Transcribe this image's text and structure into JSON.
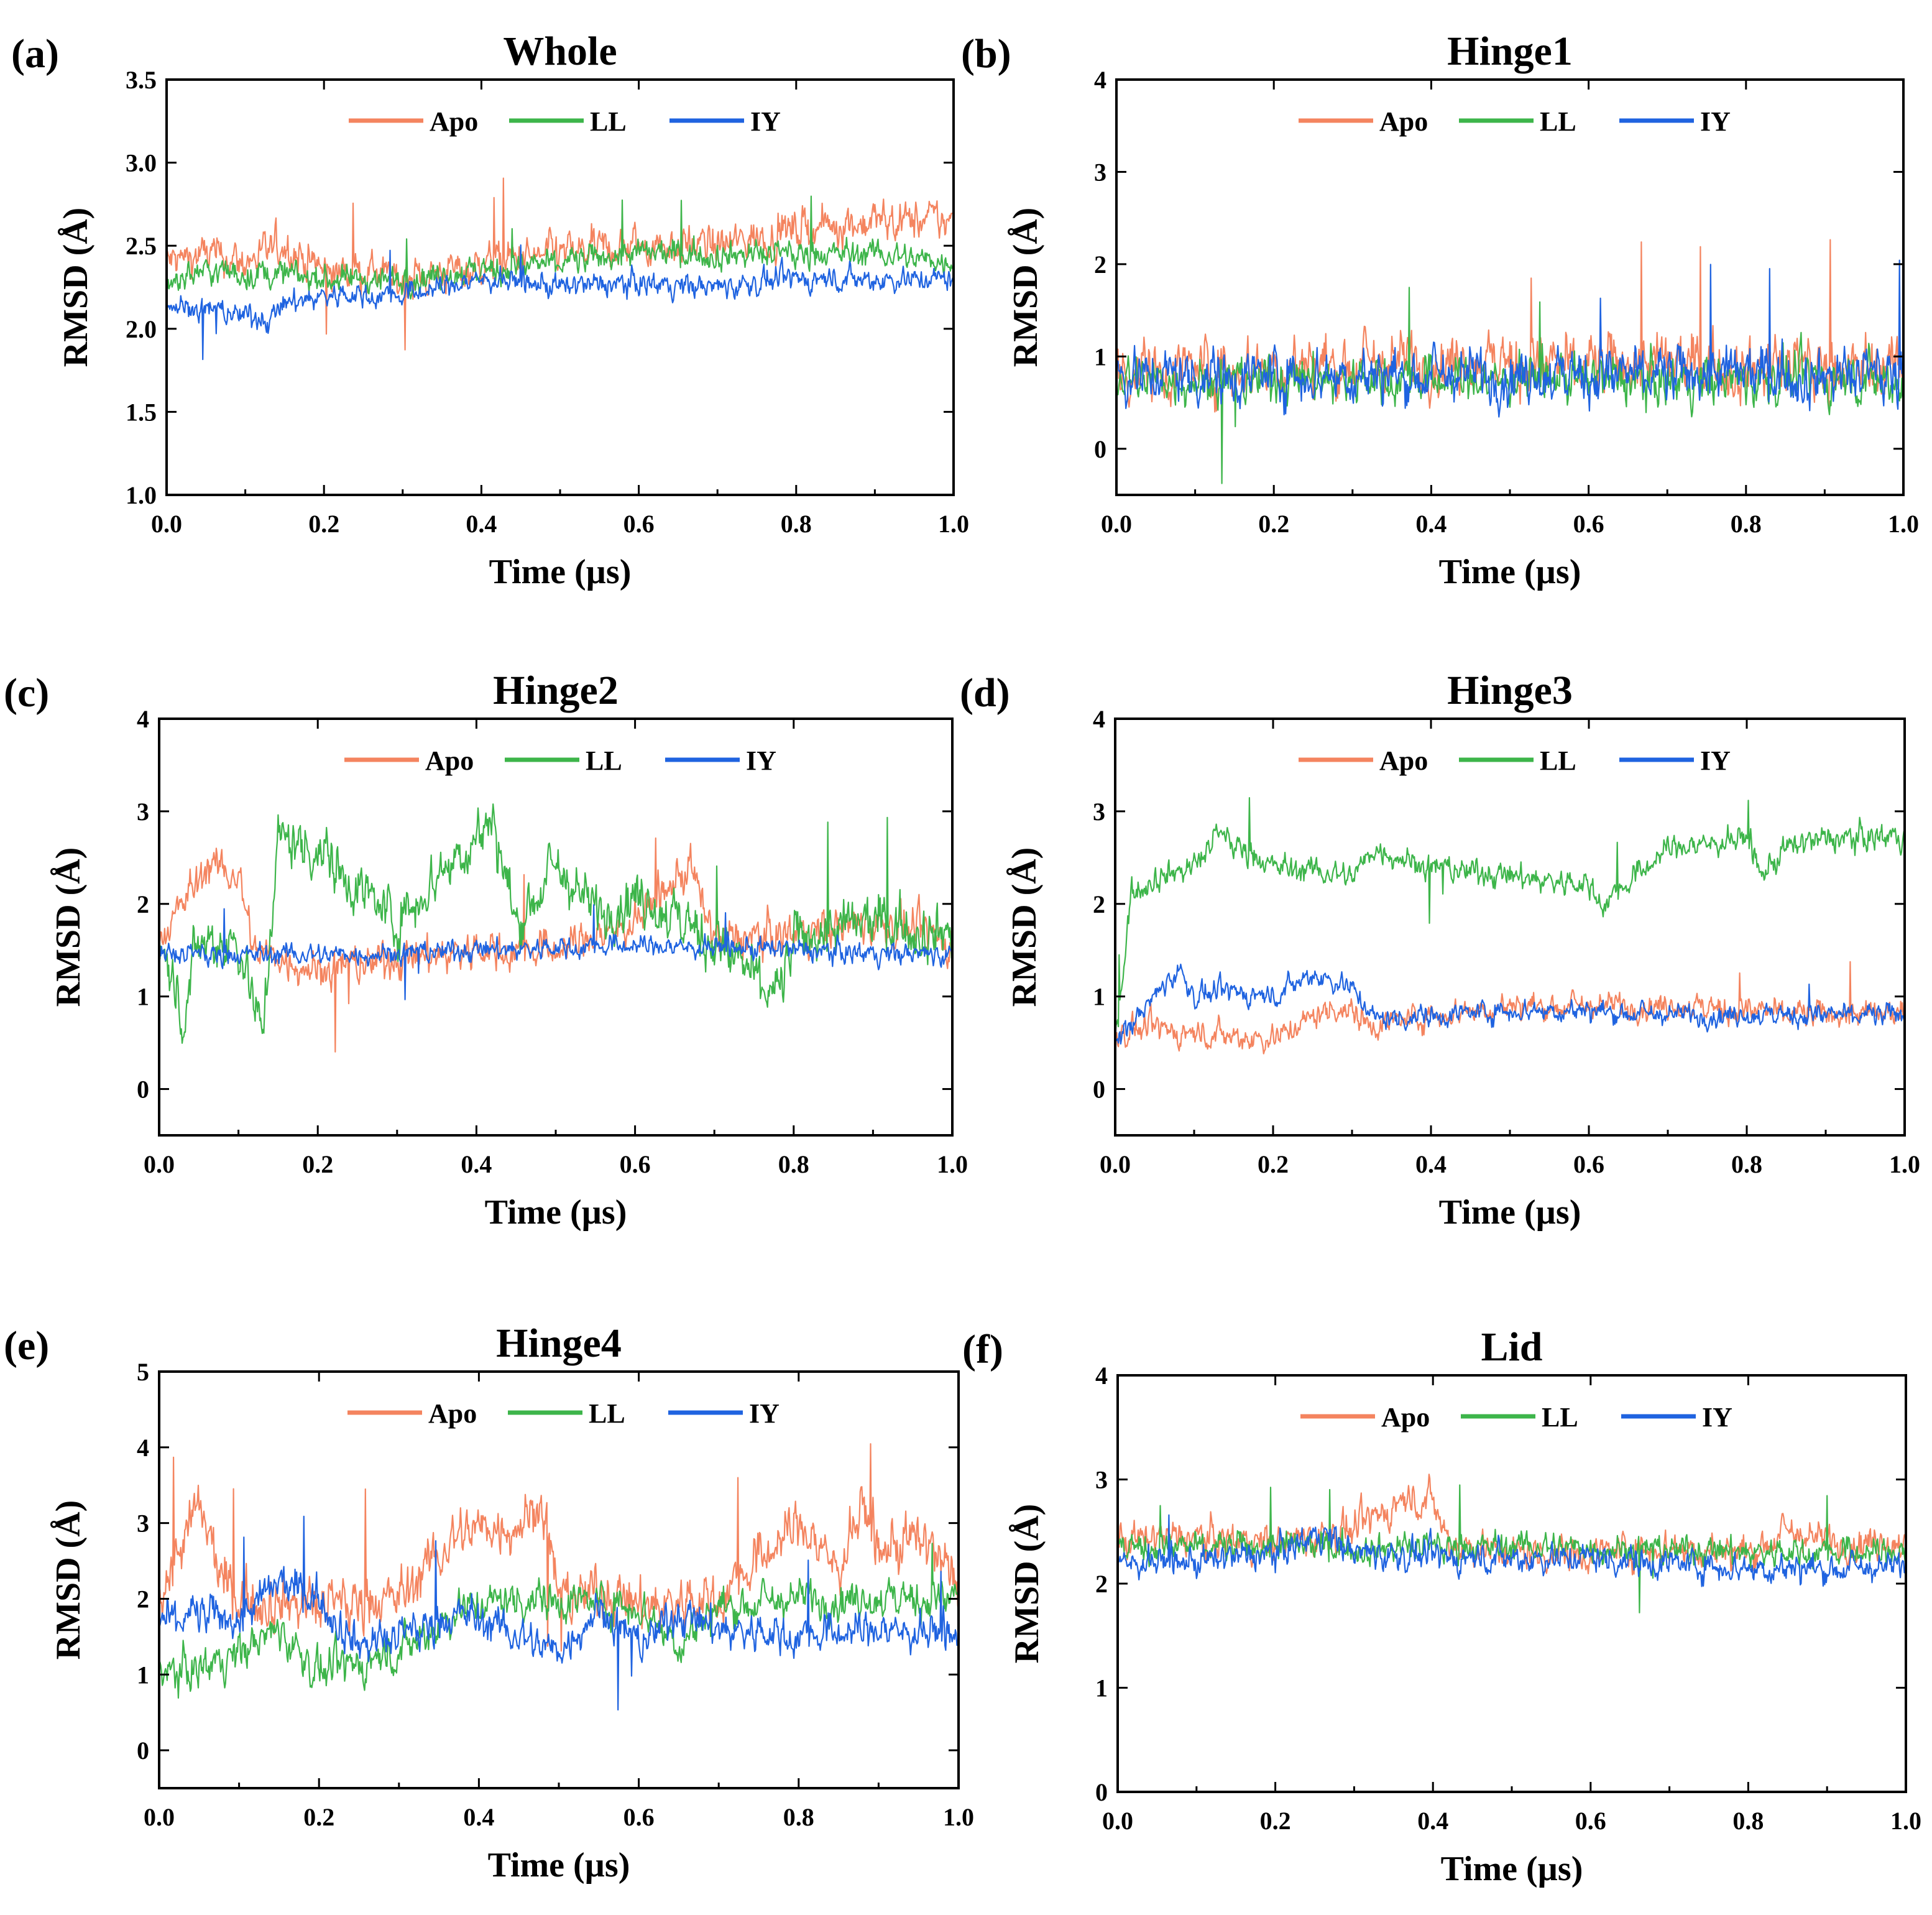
{
  "figure": {
    "colors": {
      "Apo": "#F4845F",
      "LL": "#3DB54A",
      "IY": "#1F63E0"
    },
    "legend_location": "top-center"
  },
  "chart_data": [
    {
      "type": "line",
      "panel_label": "(a)",
      "title": "Whole",
      "xlabel": "Time (µs)",
      "ylabel": "RMSD (Å)",
      "xlim": [
        0,
        1.0
      ],
      "ylim": [
        1.0,
        3.5
      ],
      "xticks": [
        "0.0",
        "0.2",
        "0.4",
        "0.6",
        "0.8",
        "1.0"
      ],
      "yticks": [
        "1.0",
        "1.5",
        "2.0",
        "2.5",
        "3.0",
        "3.5"
      ],
      "series": [
        {
          "name": "Apo",
          "x": [
            0,
            0.05,
            0.1,
            0.15,
            0.2,
            0.3,
            0.4,
            0.5,
            0.6,
            0.7,
            0.8,
            0.9,
            1.0
          ],
          "y": [
            2.4,
            2.45,
            2.4,
            2.5,
            2.35,
            2.3,
            2.38,
            2.45,
            2.5,
            2.5,
            2.6,
            2.65,
            2.65
          ],
          "noise": 0.1
        },
        {
          "name": "LL",
          "x": [
            0,
            0.05,
            0.1,
            0.15,
            0.2,
            0.3,
            0.4,
            0.5,
            0.6,
            0.7,
            0.8,
            0.9,
            1.0
          ],
          "y": [
            2.3,
            2.35,
            2.33,
            2.33,
            2.3,
            2.3,
            2.35,
            2.4,
            2.45,
            2.45,
            2.45,
            2.45,
            2.4
          ],
          "noise": 0.07
        },
        {
          "name": "IY",
          "x": [
            0,
            0.05,
            0.1,
            0.13,
            0.15,
            0.2,
            0.3,
            0.4,
            0.5,
            0.6,
            0.7,
            0.8,
            0.9,
            1.0
          ],
          "y": [
            2.15,
            2.12,
            2.08,
            2.05,
            2.15,
            2.2,
            2.2,
            2.3,
            2.25,
            2.28,
            2.25,
            2.3,
            2.3,
            2.3
          ],
          "noise": 0.06
        }
      ]
    },
    {
      "type": "line",
      "panel_label": "(b)",
      "title": "Hinge1",
      "xlabel": "Time (µs)",
      "ylabel": "RMSD (Å)",
      "xlim": [
        0,
        1.0
      ],
      "ylim": [
        -0.5,
        4
      ],
      "xticks": [
        "0.0",
        "0.2",
        "0.4",
        "0.6",
        "0.8",
        "1.0"
      ],
      "yticks": [
        "0",
        "1",
        "2",
        "3",
        "4"
      ],
      "series": [
        {
          "name": "Apo",
          "x": [
            0,
            0.2,
            0.4,
            0.6,
            0.8,
            1.0
          ],
          "y": [
            0.85,
            0.9,
            0.95,
            0.9,
            0.9,
            0.85
          ],
          "noise": 0.28
        },
        {
          "name": "LL",
          "x": [
            0,
            0.2,
            0.4,
            0.6,
            0.8,
            1.0
          ],
          "y": [
            0.75,
            0.75,
            0.75,
            0.75,
            0.75,
            0.75
          ],
          "noise": 0.22
        },
        {
          "name": "IY",
          "x": [
            0,
            0.2,
            0.4,
            0.6,
            0.8,
            1.0
          ],
          "y": [
            0.8,
            0.8,
            0.8,
            0.8,
            0.8,
            0.8
          ],
          "noise": 0.25
        }
      ]
    },
    {
      "type": "line",
      "panel_label": "(c)",
      "title": "Hinge2",
      "xlabel": "Time (µs)",
      "ylabel": "RMSD (Å)",
      "xlim": [
        0,
        1.0
      ],
      "ylim": [
        -0.5,
        4
      ],
      "xticks": [
        "0.0",
        "0.2",
        "0.4",
        "0.6",
        "0.8",
        "1.0"
      ],
      "yticks": [
        "0",
        "1",
        "2",
        "3",
        "4"
      ],
      "series": [
        {
          "name": "Apo",
          "x": [
            0,
            0.06,
            0.1,
            0.12,
            0.2,
            0.3,
            0.4,
            0.5,
            0.6,
            0.67,
            0.7,
            0.8,
            0.9,
            1.0
          ],
          "y": [
            1.6,
            2.4,
            2.3,
            1.5,
            1.3,
            1.4,
            1.5,
            1.5,
            1.8,
            2.4,
            1.6,
            1.7,
            1.8,
            1.6
          ],
          "noise": 0.18
        },
        {
          "name": "LL",
          "x": [
            0,
            0.03,
            0.05,
            0.1,
            0.13,
            0.15,
            0.2,
            0.3,
            0.35,
            0.42,
            0.45,
            0.5,
            0.55,
            0.6,
            0.7,
            0.78,
            0.8,
            0.9,
            1.0
          ],
          "y": [
            1.6,
            0.8,
            1.6,
            1.6,
            0.6,
            2.7,
            2.6,
            1.8,
            2.3,
            2.9,
            1.8,
            2.4,
            1.9,
            2.1,
            1.6,
            1.0,
            1.6,
            1.8,
            1.7
          ],
          "noise": 0.25
        },
        {
          "name": "IY",
          "x": [
            0,
            0.2,
            0.4,
            0.6,
            0.8,
            1.0
          ],
          "y": [
            1.45,
            1.45,
            1.5,
            1.55,
            1.5,
            1.45
          ],
          "noise": 0.1
        }
      ]
    },
    {
      "type": "line",
      "panel_label": "(d)",
      "title": "Hinge3",
      "xlabel": "Time (µs)",
      "ylabel": "RMSD (Å)",
      "xlim": [
        0,
        1.0
      ],
      "ylim": [
        -0.5,
        4
      ],
      "xticks": [
        "0.0",
        "0.2",
        "0.4",
        "0.6",
        "0.8",
        "1.0"
      ],
      "yticks": [
        "0",
        "1",
        "2",
        "3",
        "4"
      ],
      "series": [
        {
          "name": "Apo",
          "x": [
            0,
            0.05,
            0.1,
            0.2,
            0.28,
            0.33,
            0.4,
            0.5,
            0.6,
            0.7,
            0.8,
            0.9,
            1.0
          ],
          "y": [
            0.6,
            0.65,
            0.6,
            0.55,
            0.9,
            0.7,
            0.8,
            0.9,
            0.9,
            0.9,
            0.85,
            0.8,
            0.8
          ],
          "noise": 0.12
        },
        {
          "name": "LL",
          "x": [
            0,
            0.02,
            0.05,
            0.1,
            0.13,
            0.2,
            0.3,
            0.33,
            0.4,
            0.5,
            0.6,
            0.62,
            0.7,
            0.8,
            0.82,
            0.85,
            0.9,
            1.0
          ],
          "y": [
            0.5,
            2.1,
            2.3,
            2.4,
            2.75,
            2.4,
            2.3,
            2.6,
            2.4,
            2.3,
            2.2,
            2.0,
            2.6,
            2.7,
            2.3,
            2.6,
            2.7,
            2.75
          ],
          "noise": 0.12
        },
        {
          "name": "IY",
          "x": [
            0,
            0.05,
            0.08,
            0.1,
            0.15,
            0.2,
            0.25,
            0.3,
            0.33,
            0.4,
            0.5,
            0.6,
            0.7,
            0.8,
            0.9,
            1.0
          ],
          "y": [
            0.5,
            1.0,
            1.3,
            1.0,
            1.05,
            1.0,
            1.25,
            1.1,
            0.75,
            0.8,
            0.85,
            0.85,
            0.8,
            0.8,
            0.8,
            0.8
          ],
          "noise": 0.1
        }
      ]
    },
    {
      "type": "line",
      "panel_label": "(e)",
      "title": "Hinge4",
      "xlabel": "Time (µs)",
      "ylabel": "RMSD (Å)",
      "xlim": [
        0,
        1.0
      ],
      "ylim": [
        -0.5,
        5
      ],
      "xticks": [
        "0.0",
        "0.2",
        "0.4",
        "0.6",
        "0.8",
        "1.0"
      ],
      "yticks": [
        "0",
        "1",
        "2",
        "3",
        "4",
        "5"
      ],
      "series": [
        {
          "name": "Apo",
          "x": [
            0,
            0.05,
            0.08,
            0.1,
            0.15,
            0.2,
            0.3,
            0.38,
            0.45,
            0.48,
            0.5,
            0.55,
            0.6,
            0.7,
            0.78,
            0.8,
            0.85,
            0.88,
            0.9,
            0.95,
            1.0
          ],
          "y": [
            2.0,
            3.2,
            2.2,
            2.0,
            2.0,
            1.9,
            2.0,
            2.9,
            3.0,
            3.3,
            2.0,
            2.1,
            1.9,
            2.0,
            2.8,
            3.0,
            2.4,
            3.2,
            2.6,
            2.8,
            2.2
          ],
          "noise": 0.3
        },
        {
          "name": "LL",
          "x": [
            0,
            0.05,
            0.1,
            0.15,
            0.2,
            0.3,
            0.38,
            0.45,
            0.5,
            0.6,
            0.65,
            0.7,
            0.8,
            0.9,
            1.0
          ],
          "y": [
            1.0,
            1.1,
            1.3,
            1.6,
            1.0,
            1.3,
            1.9,
            2.0,
            2.0,
            1.9,
            1.4,
            1.9,
            2.0,
            2.0,
            2.0
          ],
          "noise": 0.22
        },
        {
          "name": "IY",
          "x": [
            0,
            0.05,
            0.1,
            0.15,
            0.2,
            0.25,
            0.3,
            0.38,
            0.45,
            0.5,
            0.55,
            0.6,
            0.65,
            0.7,
            0.8,
            0.9,
            1.0
          ],
          "y": [
            1.7,
            1.8,
            1.7,
            2.2,
            2.0,
            1.4,
            1.5,
            1.8,
            1.5,
            1.3,
            1.9,
            1.4,
            1.8,
            1.6,
            1.5,
            1.6,
            1.5
          ],
          "noise": 0.22
        }
      ]
    },
    {
      "type": "line",
      "panel_label": "(f)",
      "title": "Lid",
      "xlabel": "Time (µs)",
      "ylabel": "RMSD (Å)",
      "xlim": [
        0,
        1.0
      ],
      "ylim": [
        0,
        4
      ],
      "xticks": [
        "0.0",
        "0.2",
        "0.4",
        "0.6",
        "0.8",
        "1.0"
      ],
      "yticks": [
        "0",
        "1",
        "2",
        "3",
        "4"
      ],
      "series": [
        {
          "name": "Apo",
          "x": [
            0,
            0.1,
            0.2,
            0.3,
            0.36,
            0.4,
            0.42,
            0.5,
            0.6,
            0.7,
            0.8,
            0.85,
            0.9,
            1.0
          ],
          "y": [
            2.4,
            2.45,
            2.4,
            2.5,
            2.8,
            2.8,
            2.4,
            2.3,
            2.3,
            2.35,
            2.3,
            2.5,
            2.4,
            2.4
          ],
          "noise": 0.14
        },
        {
          "name": "LL",
          "x": [
            0,
            0.2,
            0.4,
            0.6,
            0.8,
            1.0
          ],
          "y": [
            2.35,
            2.35,
            2.35,
            2.35,
            2.3,
            2.3
          ],
          "noise": 0.12
        },
        {
          "name": "IY",
          "x": [
            0,
            0.1,
            0.2,
            0.26,
            0.3,
            0.4,
            0.5,
            0.6,
            0.7,
            0.8,
            0.9,
            1.0
          ],
          "y": [
            2.2,
            2.2,
            2.3,
            2.5,
            2.3,
            2.25,
            2.25,
            2.25,
            2.2,
            2.15,
            2.15,
            2.15
          ],
          "noise": 0.12
        }
      ]
    }
  ]
}
